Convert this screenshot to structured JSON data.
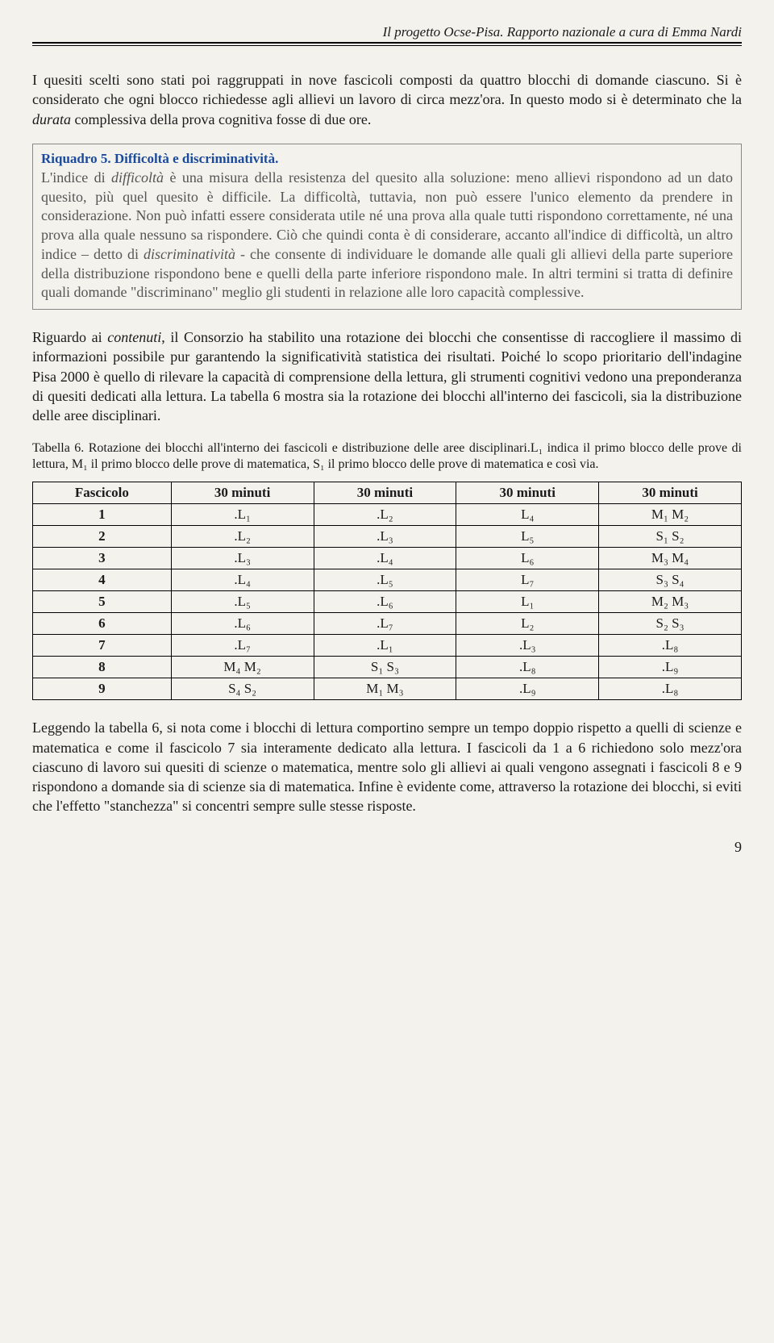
{
  "running_head": "Il progetto Ocse-Pisa. Rapporto nazionale a cura di Emma Nardi",
  "para1_a": "I quesiti scelti sono stati poi raggruppati in nove fascicoli composti da quattro blocchi di domande ciascuno. Si è considerato che ogni blocco richiedesse agli allievi un lavoro di circa mezz'ora. In questo modo si è determinato che la ",
  "para1_it": "durata",
  "para1_b": " complessiva della prova cognitiva fosse di due ore.",
  "riquadro": {
    "title": "Riquadro 5. Difficoltà e discriminatività.",
    "body_a": "L'indice di ",
    "body_it1": "difficoltà",
    "body_b": " è una misura della resistenza del quesito alla soluzione: meno allievi rispondono ad un dato quesito, più quel quesito è difficile. La difficoltà, tuttavia, non può essere l'unico elemento da prendere in considerazione. Non può infatti essere considerata utile né una prova alla quale tutti rispondono correttamente, né una prova alla quale nessuno sa rispondere. Ciò che quindi conta è di considerare, accanto all'indice di difficoltà, un altro indice – detto di ",
    "body_it2": "discriminatività",
    "body_c": " - che consente di individuare le domande alle quali gli allievi della parte superiore della distribuzione rispondono bene e quelli della parte inferiore rispondono male. In altri termini si tratta di definire quali domande \"discriminano\" meglio gli studenti in relazione alle loro capacità complessive."
  },
  "para2_a": "Riguardo ai ",
  "para2_it": "contenuti",
  "para2_b": ", il Consorzio ha stabilito una rotazione dei blocchi che consentisse di raccogliere il massimo di informazioni possibile pur garantendo la significatività statistica dei risultati. Poiché lo scopo prioritario dell'indagine Pisa 2000 è quello di rilevare la capacità di comprensione della lettura, gli strumenti cognitivi vedono una preponderanza di quesiti dedicati alla lettura. La tabella 6 mostra sia la rotazione dei blocchi all'interno dei fascicoli, sia la distribuzione delle aree disciplinari.",
  "table6_caption_a": "Tabella 6. ",
  "table6_caption_it": "Rotazione dei blocchi all'interno dei fascicoli e distribuzione delle aree disciplinari.L₁ indica il primo blocco delle prove di lettura, M₁ il primo blocco delle prove di matematica, S₁ il primo blocco delle prove di matematica e così via.",
  "table6": {
    "headers": [
      "Fascicolo",
      "30 minuti",
      "30 minuti",
      "30 minuti",
      "30 minuti"
    ],
    "rows": [
      [
        "1",
        ".L₁",
        ".L₂",
        "L₄",
        "M₁ M₂"
      ],
      [
        "2",
        ".L₂",
        ".L₃",
        "L₅",
        "S₁ S₂"
      ],
      [
        "3",
        ".L₃",
        ".L₄",
        "L₆",
        "M₃ M₄"
      ],
      [
        "4",
        ".L₄",
        ".L₅",
        "L₇",
        "S₃ S₄"
      ],
      [
        "5",
        ".L₅",
        ".L₆",
        "L₁",
        "M₂ M₃"
      ],
      [
        "6",
        ".L₆",
        ".L₇",
        "L₂",
        "S₂ S₃"
      ],
      [
        "7",
        ".L₇",
        ".L₁",
        ".L₃",
        ".L₈"
      ],
      [
        "8",
        "M₄ M₂",
        "S₁ S₃",
        ".L₈",
        ".L₉"
      ],
      [
        "9",
        "S₄ S₂",
        "M₁ M₃",
        ".L₉",
        ".L₈"
      ]
    ]
  },
  "para3": "Leggendo la tabella 6, si nota come i blocchi di lettura comportino sempre un tempo doppio rispetto a quelli di scienze e matematica e come il fascicolo 7 sia interamente dedicato alla lettura. I fascicoli da 1 a 6 richiedono solo mezz'ora ciascuno di lavoro sui quesiti di scienze o matematica, mentre solo gli allievi ai quali vengono assegnati i fascicoli 8 e 9 rispondono a domande sia di scienze sia di matematica. Infine è evidente come, attraverso la rotazione dei blocchi, si eviti che l'effetto \"stanchezza\" si concentri sempre sulle stesse risposte.",
  "page_number": "9"
}
